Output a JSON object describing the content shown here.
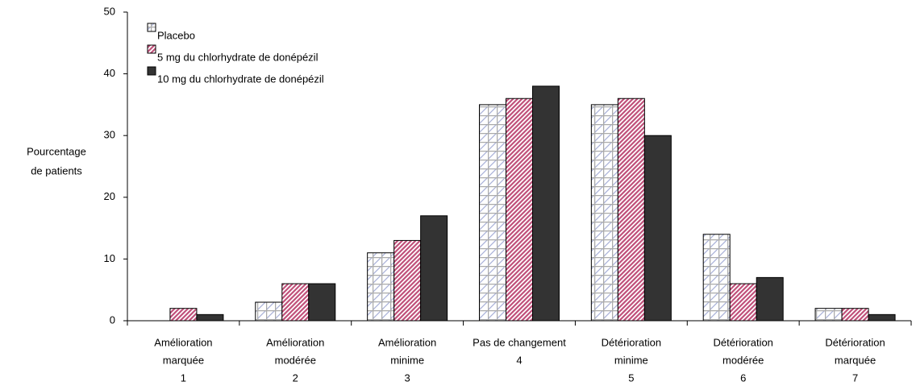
{
  "chart_data": {
    "type": "bar",
    "y_label": [
      "Pourcentage",
      "de patients"
    ],
    "categories": [
      [
        "Amélioration",
        "marquée",
        "1"
      ],
      [
        "Amélioration",
        "modérée",
        "2"
      ],
      [
        "Amélioration",
        "minime",
        "3"
      ],
      [
        "Pas de changement",
        "4"
      ],
      [
        "Détérioration",
        "minime",
        "5"
      ],
      [
        "Détérioration",
        "modérée",
        "6"
      ],
      [
        "Détérioration",
        "marquée",
        "7"
      ]
    ],
    "series": [
      {
        "name": "Placebo",
        "color": "#a8b0d8",
        "values": [
          0,
          3,
          11,
          35,
          35,
          14,
          2
        ]
      },
      {
        "name": "5 mg du chlorhydrate de donépézil",
        "color": "#c0507a",
        "values": [
          2,
          6,
          13,
          36,
          36,
          6,
          2
        ]
      },
      {
        "name": "10 mg du chlorhydrate de donépézil",
        "color": "#333333",
        "values": [
          1,
          6,
          17,
          38,
          30,
          7,
          1
        ]
      }
    ],
    "ylim": [
      0,
      50
    ],
    "yticks": [
      0,
      10,
      20,
      30,
      40,
      50
    ],
    "legend": "upper-left"
  }
}
